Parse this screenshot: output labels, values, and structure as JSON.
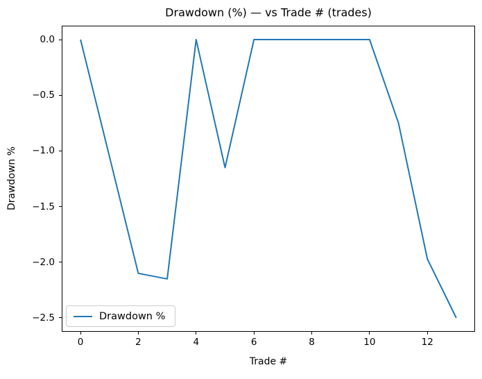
{
  "figure": {
    "background": "#ffffff",
    "text_color": "#000000"
  },
  "chart_data": {
    "type": "line",
    "title": "Drawdown (%) — vs Trade # (trades)",
    "xlabel": "Trade #",
    "ylabel": "Drawdown %",
    "x": [
      0,
      1,
      2,
      3,
      4,
      5,
      6,
      7,
      8,
      9,
      10,
      11,
      12,
      13
    ],
    "series": [
      {
        "name": "Drawdown %",
        "color": "#1f77b4",
        "values": [
          0.0,
          -1.05,
          -2.1,
          -2.15,
          0.0,
          -1.15,
          0.0,
          0.0,
          0.0,
          0.0,
          0.0,
          -0.75,
          -1.97,
          -2.5
        ]
      }
    ],
    "xlim": [
      -0.65,
      13.65
    ],
    "ylim": [
      -2.625,
      0.125
    ],
    "xticks": {
      "values": [
        0,
        2,
        4,
        6,
        8,
        10,
        12
      ],
      "labels": [
        "0",
        "2",
        "4",
        "6",
        "8",
        "10",
        "12"
      ]
    },
    "yticks": {
      "values": [
        0.0,
        -0.5,
        -1.0,
        -1.5,
        -2.0,
        -2.5
      ],
      "labels": [
        "0.0",
        "−0.5",
        "−1.0",
        "−1.5",
        "−2.0",
        "−2.5"
      ]
    },
    "grid": false,
    "legend": {
      "position": "lower left",
      "entries": [
        {
          "label": "Drawdown %",
          "color": "#1f77b4"
        }
      ]
    }
  }
}
